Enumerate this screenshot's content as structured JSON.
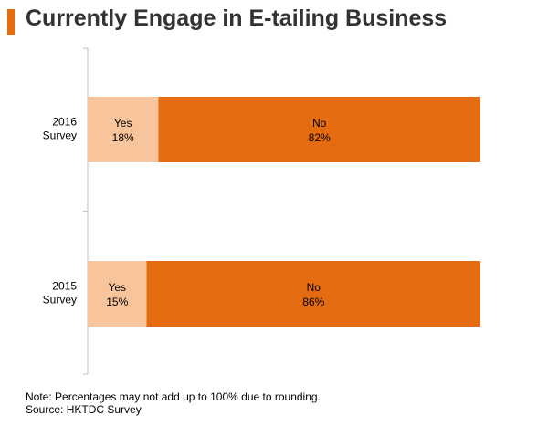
{
  "title": "Currently Engage in E-tailing Business",
  "colors": {
    "accent": "#E56B10",
    "yes": "#F8C49B",
    "no": "#E56B10",
    "title": "#333333"
  },
  "note": "Note: Percentages may not add up to 100% due to rounding.",
  "source": "Source: HKTDC Survey",
  "chart_data": {
    "type": "bar",
    "orientation": "horizontal",
    "stacked": true,
    "categories": [
      [
        "2016",
        "Survey"
      ],
      [
        "2015",
        "Survey"
      ]
    ],
    "series": [
      {
        "name": "Yes",
        "values": [
          18,
          15
        ],
        "labels": [
          "18%",
          "15%"
        ]
      },
      {
        "name": "No",
        "values": [
          82,
          86
        ],
        "labels": [
          "82%",
          "86%"
        ]
      }
    ],
    "xlim": [
      0,
      100
    ],
    "grid": false,
    "legend": "none"
  }
}
